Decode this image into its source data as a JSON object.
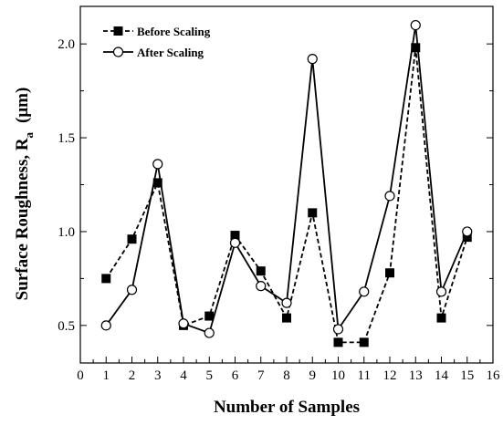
{
  "chart_data": {
    "type": "line",
    "title": "",
    "xlabel": "Number of Samples",
    "ylabel": "Surface Roughness, R",
    "ylabel_subscript": "a",
    "ylabel_unit": "(μm)",
    "xlim": [
      0,
      16
    ],
    "ylim": [
      0.3,
      2.2
    ],
    "xticks": [
      "0",
      "1",
      "2",
      "3",
      "4",
      "5",
      "6",
      "7",
      "8",
      "9",
      "10",
      "11",
      "12",
      "13",
      "14",
      "15",
      "16"
    ],
    "yticks": [
      "0.5",
      "1.0",
      "1.5",
      "2.0"
    ],
    "grid": false,
    "legend_position": "top-left",
    "x": [
      1,
      2,
      3,
      4,
      5,
      6,
      7,
      8,
      9,
      10,
      11,
      12,
      13,
      14,
      15
    ],
    "series": [
      {
        "name": "Before Scaling",
        "line_style": "dashed",
        "marker": "filled-square",
        "color": "#000000",
        "values": [
          0.75,
          0.96,
          1.26,
          0.5,
          0.55,
          0.98,
          0.79,
          0.54,
          1.1,
          0.41,
          0.41,
          0.78,
          1.98,
          0.54,
          0.97
        ]
      },
      {
        "name": "After Scaling",
        "line_style": "solid",
        "marker": "open-circle",
        "color": "#000000",
        "values": [
          0.5,
          0.69,
          1.36,
          0.51,
          0.46,
          0.94,
          0.71,
          0.62,
          1.92,
          0.48,
          0.68,
          1.19,
          2.1,
          0.68,
          1.0
        ]
      }
    ]
  }
}
